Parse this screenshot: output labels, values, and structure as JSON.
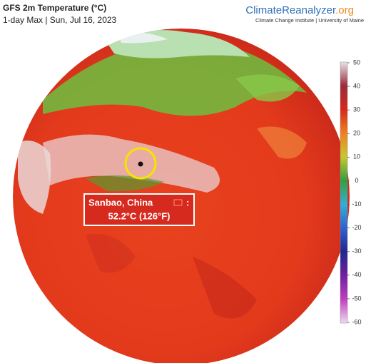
{
  "header": {
    "title": "GFS 2m Temperature (°C)",
    "subtitle": "1-day Max | Sun, Jul 16, 2023"
  },
  "brand": {
    "name": "ClimateReanalyzer",
    "suffix": ".org",
    "tagline": "Climate Change Institute | University of Maine"
  },
  "colorbar": {
    "range": [
      -60,
      50
    ],
    "ticks": [
      50,
      40,
      30,
      20,
      10,
      0,
      -10,
      -20,
      -30,
      -40,
      -50,
      -60
    ],
    "colors": [
      "#e8e4e8",
      "#9c2a3c",
      "#d8281c",
      "#f08020",
      "#c8c830",
      "#30a040",
      "#30b0d8",
      "#3060d0",
      "#202890",
      "#7020a0",
      "#c040c0",
      "#f0d8f0"
    ]
  },
  "callout": {
    "location": "Sanbao, China",
    "separator": ":",
    "value": "52.2°C (126°F)"
  }
}
